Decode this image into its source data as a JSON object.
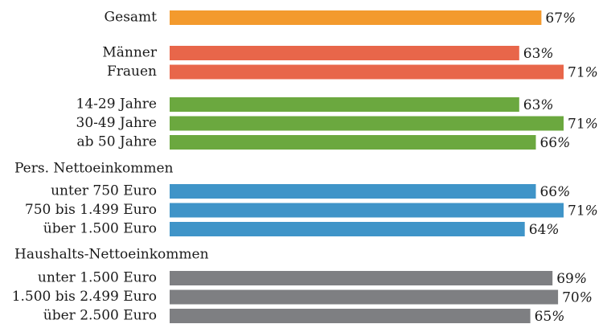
{
  "chart_data": {
    "type": "bar",
    "orientation": "horizontal",
    "unit": "%",
    "xlim": [
      0,
      71
    ],
    "groups": [
      {
        "title": "",
        "color": "#F39A2D",
        "items": [
          {
            "label": "Gesamt",
            "value": 67
          }
        ]
      },
      {
        "title": "",
        "color": "#E8664A",
        "items": [
          {
            "label": "Männer",
            "value": 63
          },
          {
            "label": "Frauen",
            "value": 71
          }
        ]
      },
      {
        "title": "",
        "color": "#6BA83F",
        "items": [
          {
            "label": "14-29 Jahre",
            "value": 63
          },
          {
            "label": "30-49 Jahre",
            "value": 71
          },
          {
            "label": "ab 50 Jahre",
            "value": 66
          }
        ]
      },
      {
        "title": "Pers. Nettoeinkommen",
        "color": "#3F94C8",
        "items": [
          {
            "label": "unter 750 Euro",
            "value": 66
          },
          {
            "label": "750 bis 1.499 Euro",
            "value": 71
          },
          {
            "label": "über 1.500 Euro",
            "value": 64
          }
        ]
      },
      {
        "title": "Haushalts-Nettoeinkommen",
        "color": "#7E7F82",
        "items": [
          {
            "label": "unter 1.500 Euro",
            "value": 69
          },
          {
            "label": "1.500 bis 2.499 Euro",
            "value": 70
          },
          {
            "label": "über 2.500 Euro",
            "value": 65
          }
        ]
      }
    ]
  }
}
